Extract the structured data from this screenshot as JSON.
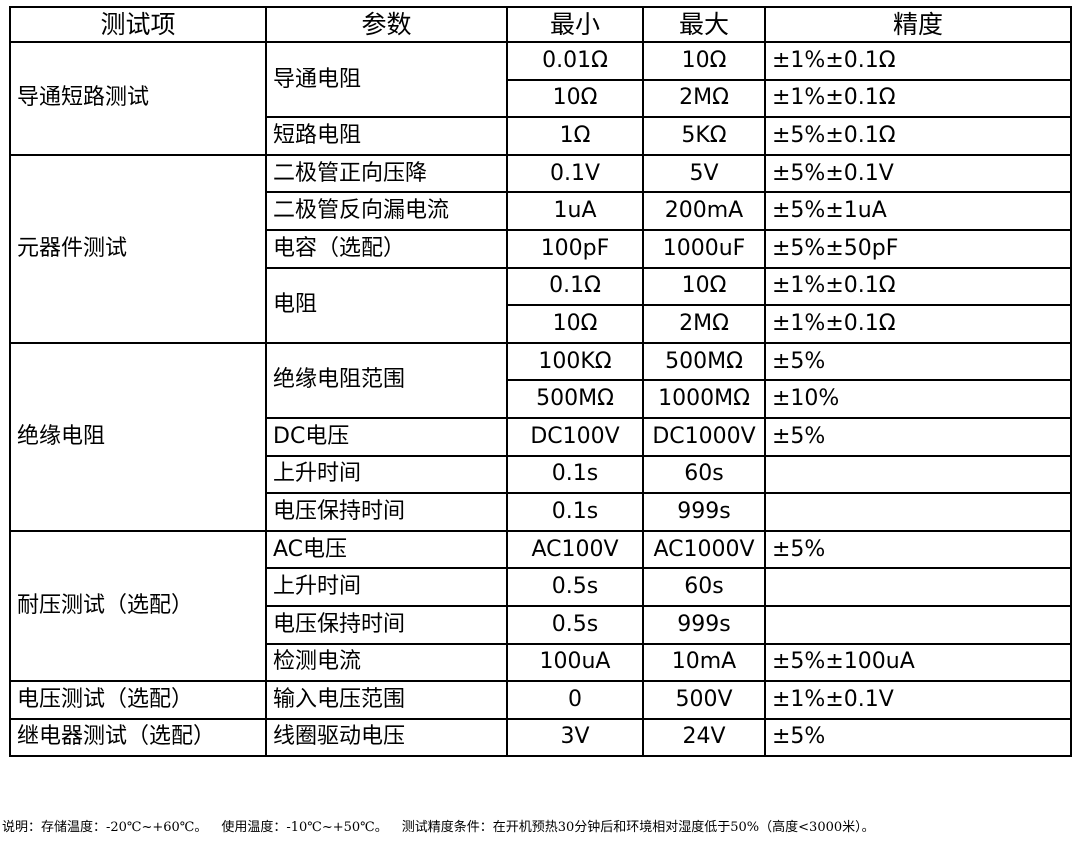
{
  "table": {
    "header": [
      "测试项",
      "参数",
      "最小",
      "最大",
      "精度"
    ],
    "groups": [
      {
        "item": "导通短路测试",
        "params": [
          {
            "name": "导通电阻",
            "rows": [
              [
                "0.01Ω",
                "10Ω",
                "±1%±0.1Ω"
              ],
              [
                "10Ω",
                "2MΩ",
                "±1%±0.1Ω"
              ]
            ]
          },
          {
            "name": "短路电阻",
            "rows": [
              [
                "1Ω",
                "5KΩ",
                "±5%±0.1Ω"
              ]
            ]
          }
        ]
      },
      {
        "item": "元器件测试",
        "params": [
          {
            "name": "二极管正向压降",
            "rows": [
              [
                "0.1V",
                "5V",
                "±5%±0.1V"
              ]
            ]
          },
          {
            "name": "二极管反向漏电流",
            "rows": [
              [
                "1uA",
                "200mA",
                "±5%±1uA"
              ]
            ]
          },
          {
            "name": "电容（选配）",
            "rows": [
              [
                "100pF",
                "1000uF",
                "±5%±50pF"
              ]
            ]
          },
          {
            "name": "电阻",
            "rows": [
              [
                "0.1Ω",
                "10Ω",
                "±1%±0.1Ω"
              ],
              [
                "10Ω",
                "2MΩ",
                "±1%±0.1Ω"
              ]
            ]
          }
        ]
      },
      {
        "item": "绝缘电阻",
        "params": [
          {
            "name": "绝缘电阻范围",
            "rows": [
              [
                "100KΩ",
                "500MΩ",
                "±5%"
              ],
              [
                "500MΩ",
                "1000MΩ",
                "±10%"
              ]
            ]
          },
          {
            "name": "DC电压",
            "rows": [
              [
                "DC100V",
                "DC1000V",
                "±5%"
              ]
            ]
          },
          {
            "name": "上升时间",
            "rows": [
              [
                "0.1s",
                "60s"
              ]
            ]
          },
          {
            "name": "电压保持时间",
            "rows": [
              [
                "0.1s",
                "999s"
              ]
            ]
          }
        ]
      },
      {
        "item": "耐压测试（选配）",
        "params": [
          {
            "name": "AC电压",
            "rows": [
              [
                "AC100V",
                "AC1000V",
                "±5%"
              ]
            ]
          },
          {
            "name": "上升时间",
            "rows": [
              [
                "0.5s",
                "60s"
              ]
            ]
          },
          {
            "name": "电压保持时间",
            "rows": [
              [
                "0.5s",
                "999s"
              ]
            ]
          },
          {
            "name": "检测电流",
            "rows": [
              [
                "100uA",
                "10mA",
                "±5%±100uA"
              ]
            ]
          }
        ]
      },
      {
        "item": "电压测试（选配）",
        "params": [
          {
            "name": "输入电压范围",
            "rows": [
              [
                "0",
                "500V",
                "±1%±0.1V"
              ]
            ]
          }
        ]
      },
      {
        "item": "继电器测试（选配）",
        "params": [
          {
            "name": "线圈驱动电压",
            "rows": [
              [
                "3V",
                "24V",
                "±5%"
              ]
            ]
          }
        ]
      }
    ]
  },
  "notes": [
    "说明：存储温度：-20℃~+60℃。",
    "使用温度：-10℃~+50℃。",
    "测试精度条件：在开机预热30分钟后和环境相对湿度低于50%（高度<3000米）。"
  ]
}
